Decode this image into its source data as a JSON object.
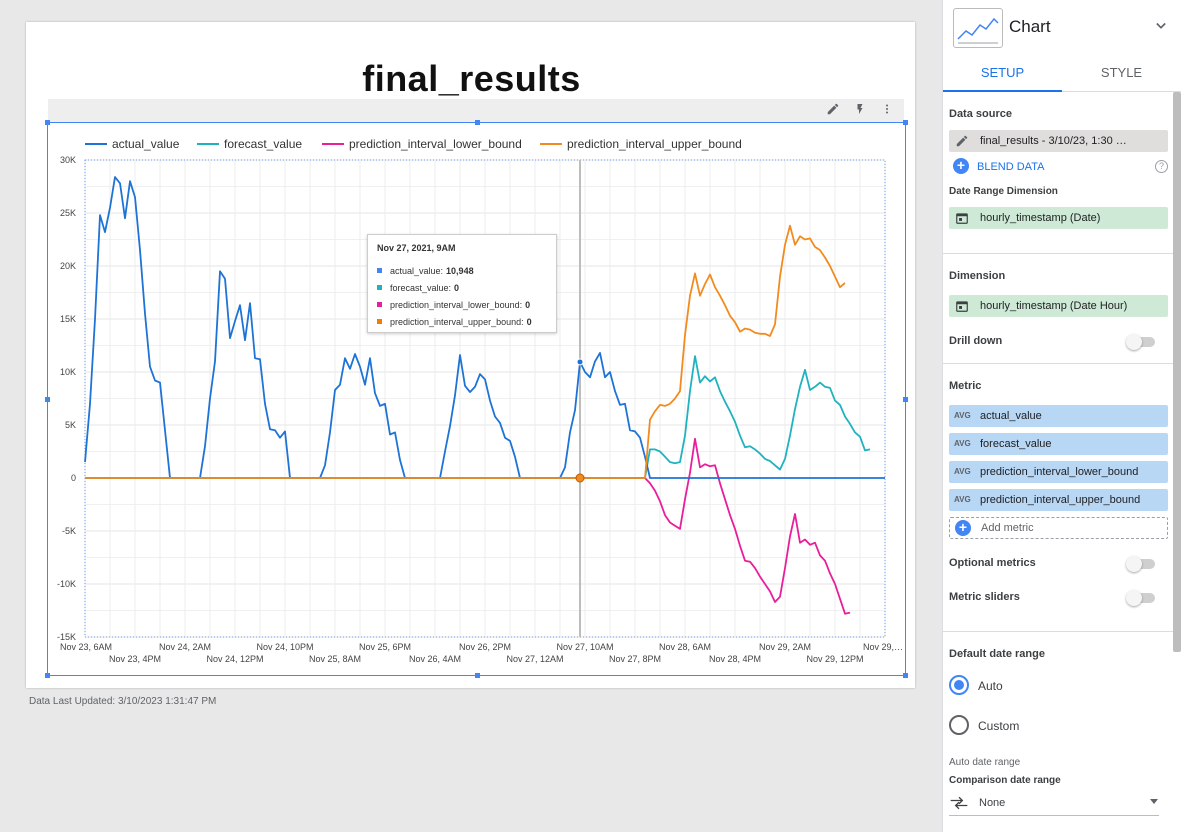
{
  "report": {
    "title": "final_results",
    "footer": "Data Last Updated: 3/10/2023 1:31:47 PM"
  },
  "toolbar": {
    "icons": [
      "pencil-icon",
      "bolt-icon",
      "more-vert-icon"
    ]
  },
  "tooltip": {
    "title": "Nov 27, 2021, 9AM",
    "rows": [
      {
        "label": "actual_value:",
        "value": "10,948",
        "color": "#4285f4"
      },
      {
        "label": "forecast_value:",
        "value": "0",
        "color": "#20b2bf"
      },
      {
        "label": "prediction_interval_lower_bound:",
        "value": "0",
        "color": "#e91e9b"
      },
      {
        "label": "prediction_interval_upper_bound:",
        "value": "0",
        "color": "#f57c00"
      }
    ]
  },
  "chart_data": {
    "type": "line",
    "title": "final_results",
    "ylim": [
      -15000,
      30000
    ],
    "yticks": [
      {
        "v": 30000,
        "label": "30K"
      },
      {
        "v": 25000,
        "label": "25K"
      },
      {
        "v": 20000,
        "label": "20K"
      },
      {
        "v": 15000,
        "label": "15K"
      },
      {
        "v": 10000,
        "label": "10K"
      },
      {
        "v": 5000,
        "label": "5K"
      },
      {
        "v": 0,
        "label": "0"
      },
      {
        "v": -5000,
        "label": "-5K"
      },
      {
        "v": -10000,
        "label": "-10K"
      },
      {
        "v": -15000,
        "label": "-15K"
      }
    ],
    "x_range_hours": [
      0,
      160
    ],
    "xticks_row1": [
      {
        "h": 0,
        "label": "Nov 23, 6AM"
      },
      {
        "h": 20,
        "label": "Nov 24, 2AM"
      },
      {
        "h": 40,
        "label": "Nov 24, 10PM"
      },
      {
        "h": 60,
        "label": "Nov 25, 6PM"
      },
      {
        "h": 80,
        "label": "Nov 26, 2PM"
      },
      {
        "h": 100,
        "label": "Nov 27, 10AM"
      },
      {
        "h": 120,
        "label": "Nov 28, 6AM"
      },
      {
        "h": 140,
        "label": "Nov 29, 2AM"
      },
      {
        "h": 160,
        "label": "Nov 29,…"
      }
    ],
    "xticks_row2": [
      {
        "h": 10,
        "label": "Nov 23, 4PM"
      },
      {
        "h": 30,
        "label": "Nov 24, 12PM"
      },
      {
        "h": 50,
        "label": "Nov 25, 8AM"
      },
      {
        "h": 70,
        "label": "Nov 26, 4AM"
      },
      {
        "h": 90,
        "label": "Nov 27, 12AM"
      },
      {
        "h": 110,
        "label": "Nov 27, 8PM"
      },
      {
        "h": 130,
        "label": "Nov 28, 4PM"
      },
      {
        "h": 150,
        "label": "Nov 29, 12PM"
      }
    ],
    "hover_hour": 99,
    "grid": true,
    "legend_position": "top",
    "series": [
      {
        "name": "actual_value",
        "color": "#1e73d6",
        "points": [
          [
            0,
            1500
          ],
          [
            1,
            7000
          ],
          [
            2,
            15000
          ],
          [
            3,
            24800
          ],
          [
            4,
            23200
          ],
          [
            5,
            25500
          ],
          [
            6,
            28400
          ],
          [
            7,
            27800
          ],
          [
            8,
            24500
          ],
          [
            9,
            28000
          ],
          [
            10,
            26500
          ],
          [
            11,
            21500
          ],
          [
            12,
            15500
          ],
          [
            13,
            10500
          ],
          [
            14,
            9200
          ],
          [
            15,
            9000
          ],
          [
            16,
            4500
          ],
          [
            17,
            0
          ],
          [
            23,
            0
          ],
          [
            24,
            3000
          ],
          [
            25,
            7500
          ],
          [
            26,
            11000
          ],
          [
            27,
            19500
          ],
          [
            28,
            18800
          ],
          [
            29,
            13200
          ],
          [
            30,
            14800
          ],
          [
            31,
            16300
          ],
          [
            32,
            13000
          ],
          [
            33,
            16500
          ],
          [
            34,
            11300
          ],
          [
            35,
            11200
          ],
          [
            36,
            7000
          ],
          [
            37,
            4600
          ],
          [
            38,
            4500
          ],
          [
            39,
            3800
          ],
          [
            40,
            4400
          ],
          [
            41,
            0
          ],
          [
            47,
            0
          ],
          [
            48,
            1200
          ],
          [
            49,
            4300
          ],
          [
            50,
            8300
          ],
          [
            51,
            8800
          ],
          [
            52,
            11300
          ],
          [
            53,
            10300
          ],
          [
            54,
            11700
          ],
          [
            55,
            10500
          ],
          [
            56,
            8800
          ],
          [
            57,
            11300
          ],
          [
            58,
            8000
          ],
          [
            59,
            6800
          ],
          [
            60,
            7000
          ],
          [
            61,
            4100
          ],
          [
            62,
            4300
          ],
          [
            63,
            1700
          ],
          [
            64,
            0
          ],
          [
            71,
            0
          ],
          [
            72,
            2500
          ],
          [
            73,
            4900
          ],
          [
            74,
            7800
          ],
          [
            75,
            11600
          ],
          [
            76,
            8700
          ],
          [
            77,
            8100
          ],
          [
            78,
            8600
          ],
          [
            79,
            9800
          ],
          [
            80,
            9300
          ],
          [
            81,
            7300
          ],
          [
            82,
            5800
          ],
          [
            83,
            5200
          ],
          [
            84,
            3800
          ],
          [
            85,
            3500
          ],
          [
            86,
            2000
          ],
          [
            87,
            0
          ],
          [
            95,
            0
          ],
          [
            96,
            1000
          ],
          [
            97,
            4300
          ],
          [
            98,
            6400
          ],
          [
            99,
            10948
          ],
          [
            100,
            10000
          ],
          [
            101,
            9500
          ],
          [
            102,
            11000
          ],
          [
            103,
            11800
          ],
          [
            104,
            9500
          ],
          [
            105,
            10000
          ],
          [
            106,
            8200
          ],
          [
            107,
            6900
          ],
          [
            108,
            7000
          ],
          [
            109,
            4500
          ],
          [
            110,
            4400
          ],
          [
            111,
            3800
          ],
          [
            112,
            2000
          ],
          [
            113,
            0
          ],
          [
            160,
            0
          ]
        ]
      },
      {
        "name": "forecast_value",
        "color": "#20b2bf",
        "points": [
          [
            0,
            0
          ],
          [
            112,
            0
          ],
          [
            113,
            2700
          ],
          [
            114,
            2700
          ],
          [
            115,
            2500
          ],
          [
            116,
            2000
          ],
          [
            117,
            1500
          ],
          [
            118,
            1400
          ],
          [
            119,
            1500
          ],
          [
            120,
            4000
          ],
          [
            121,
            8200
          ],
          [
            122,
            11500
          ],
          [
            123,
            9000
          ],
          [
            124,
            9600
          ],
          [
            125,
            9100
          ],
          [
            126,
            9500
          ],
          [
            127,
            8200
          ],
          [
            128,
            7200
          ],
          [
            129,
            6300
          ],
          [
            130,
            5300
          ],
          [
            131,
            4000
          ],
          [
            132,
            2900
          ],
          [
            133,
            3000
          ],
          [
            134,
            2700
          ],
          [
            135,
            2300
          ],
          [
            136,
            1800
          ],
          [
            137,
            1600
          ],
          [
            138,
            1200
          ],
          [
            139,
            800
          ],
          [
            140,
            1800
          ],
          [
            141,
            4000
          ],
          [
            142,
            6500
          ],
          [
            143,
            8600
          ],
          [
            144,
            10200
          ],
          [
            145,
            8300
          ],
          [
            146,
            8600
          ],
          [
            147,
            9000
          ],
          [
            148,
            8600
          ],
          [
            149,
            8500
          ],
          [
            150,
            7300
          ],
          [
            151,
            6900
          ],
          [
            152,
            5800
          ],
          [
            153,
            5100
          ],
          [
            154,
            4300
          ],
          [
            155,
            3900
          ],
          [
            156,
            2600
          ],
          [
            157,
            2700
          ]
        ]
      },
      {
        "name": "prediction_interval_lower_bound",
        "color": "#e91e9b",
        "points": [
          [
            0,
            0
          ],
          [
            112,
            0
          ],
          [
            113,
            -500
          ],
          [
            114,
            -1200
          ],
          [
            115,
            -2200
          ],
          [
            116,
            -3500
          ],
          [
            117,
            -4200
          ],
          [
            118,
            -4500
          ],
          [
            119,
            -4800
          ],
          [
            120,
            -2000
          ],
          [
            121,
            500
          ],
          [
            122,
            3700
          ],
          [
            123,
            1000
          ],
          [
            124,
            1300
          ],
          [
            125,
            1100
          ],
          [
            126,
            1200
          ],
          [
            127,
            -500
          ],
          [
            128,
            -2000
          ],
          [
            129,
            -3500
          ],
          [
            130,
            -4800
          ],
          [
            131,
            -6400
          ],
          [
            132,
            -7800
          ],
          [
            133,
            -7900
          ],
          [
            134,
            -8500
          ],
          [
            135,
            -9300
          ],
          [
            136,
            -10000
          ],
          [
            137,
            -10700
          ],
          [
            138,
            -11700
          ],
          [
            139,
            -11200
          ],
          [
            140,
            -8500
          ],
          [
            141,
            -5500
          ],
          [
            142,
            -3400
          ],
          [
            143,
            -6100
          ],
          [
            144,
            -5800
          ],
          [
            145,
            -6300
          ],
          [
            146,
            -6100
          ],
          [
            147,
            -7300
          ],
          [
            148,
            -7800
          ],
          [
            149,
            -9000
          ],
          [
            150,
            -10000
          ],
          [
            151,
            -11400
          ],
          [
            152,
            -12800
          ],
          [
            153,
            -12700
          ]
        ]
      },
      {
        "name": "prediction_interval_upper_bound",
        "color": "#f28b1f",
        "points": [
          [
            0,
            0
          ],
          [
            112,
            0
          ],
          [
            113,
            5500
          ],
          [
            114,
            6300
          ],
          [
            115,
            6900
          ],
          [
            116,
            6800
          ],
          [
            117,
            7000
          ],
          [
            118,
            7500
          ],
          [
            119,
            8200
          ],
          [
            120,
            13500
          ],
          [
            121,
            17200
          ],
          [
            122,
            19300
          ],
          [
            123,
            17200
          ],
          [
            124,
            18300
          ],
          [
            125,
            19200
          ],
          [
            126,
            18000
          ],
          [
            127,
            17200
          ],
          [
            128,
            16300
          ],
          [
            129,
            15300
          ],
          [
            130,
            14700
          ],
          [
            131,
            13800
          ],
          [
            132,
            14100
          ],
          [
            133,
            14000
          ],
          [
            134,
            13700
          ],
          [
            135,
            13600
          ],
          [
            136,
            13600
          ],
          [
            137,
            13400
          ],
          [
            138,
            14500
          ],
          [
            139,
            19000
          ],
          [
            140,
            22000
          ],
          [
            141,
            23800
          ],
          [
            142,
            22000
          ],
          [
            143,
            22800
          ],
          [
            144,
            22500
          ],
          [
            145,
            22600
          ],
          [
            146,
            21800
          ],
          [
            147,
            21500
          ],
          [
            148,
            20800
          ],
          [
            149,
            20000
          ],
          [
            150,
            19000
          ],
          [
            151,
            18000
          ],
          [
            152,
            18400
          ]
        ]
      }
    ]
  },
  "panel": {
    "title": "Chart",
    "tabs": [
      "SETUP",
      "STYLE"
    ],
    "data_source_label": "Data source",
    "data_source_value": "final_results - 3/10/23, 1:30 …",
    "blend_data": "BLEND DATA",
    "date_range_dim_label": "Date Range Dimension",
    "date_range_dim_value": "hourly_timestamp (Date)",
    "dimension_label": "Dimension",
    "dimension_value": "hourly_timestamp (Date Hour)",
    "drill_down": "Drill down",
    "metric_label": "Metric",
    "metric_agg": "AVG",
    "metrics": [
      "actual_value",
      "forecast_value",
      "prediction_interval_lower_bound",
      "prediction_interval_upper_bound"
    ],
    "add_metric": "Add metric",
    "optional_metrics": "Optional metrics",
    "metric_sliders": "Metric sliders",
    "default_date_range": "Default date range",
    "radio_auto": "Auto",
    "radio_custom": "Custom",
    "auto_date_range": "Auto date range",
    "comparison_label": "Comparison date range",
    "comparison_value": "None",
    "help_icon": "?"
  }
}
